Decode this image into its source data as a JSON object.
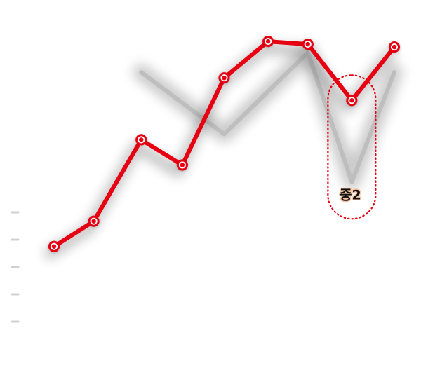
{
  "chart_data": {
    "type": "line",
    "title": "",
    "xlabel": "",
    "ylabel": "",
    "x": [
      1,
      2,
      3,
      4,
      5,
      6,
      7,
      8,
      9
    ],
    "ylim": [
      0,
      100
    ],
    "grid": false,
    "series": [
      {
        "values": [
          22,
          31,
          60,
          51,
          82,
          95,
          94,
          74,
          93
        ],
        "color": "#e60012",
        "marker": "circle"
      },
      {
        "values": [
          null,
          null,
          84,
          null,
          62,
          null,
          91,
          45,
          84
        ],
        "color": "#bdbdbd",
        "style": "shadow"
      }
    ],
    "highlight": {
      "x": 8,
      "label": "중2",
      "color": "#e60012"
    }
  }
}
